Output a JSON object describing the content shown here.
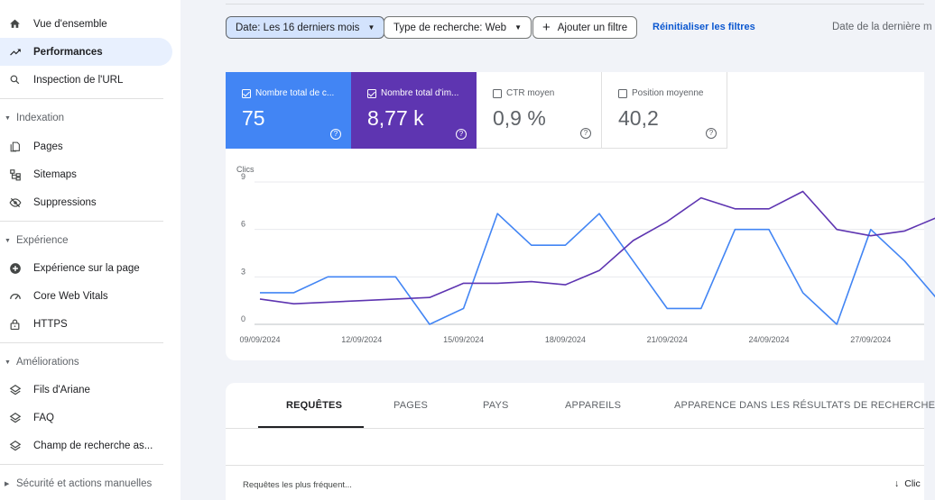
{
  "sidebar": {
    "top_items": [
      {
        "label": "Vue d'ensemble",
        "icon": "home-icon"
      },
      {
        "label": "Performances",
        "icon": "trending-up-icon",
        "active": true
      },
      {
        "label": "Inspection de l'URL",
        "icon": "search-icon"
      }
    ],
    "sections": [
      {
        "title": "Indexation",
        "items": [
          {
            "label": "Pages",
            "icon": "pages-icon"
          },
          {
            "label": "Sitemaps",
            "icon": "sitemap-icon"
          },
          {
            "label": "Suppressions",
            "icon": "eye-off-icon"
          }
        ]
      },
      {
        "title": "Expérience",
        "items": [
          {
            "label": "Expérience sur la page",
            "icon": "plus-circle-icon"
          },
          {
            "label": "Core Web Vitals",
            "icon": "gauge-icon"
          },
          {
            "label": "HTTPS",
            "icon": "lock-icon"
          }
        ]
      },
      {
        "title": "Améliorations",
        "items": [
          {
            "label": "Fils d'Ariane",
            "icon": "layers-icon"
          },
          {
            "label": "FAQ",
            "icon": "layers-icon"
          },
          {
            "label": "Champ de recherche as...",
            "icon": "layers-icon"
          }
        ]
      }
    ],
    "collapsed_section": "Sécurité et actions manuelles"
  },
  "filters": {
    "date": "Date: Les 16 derniers mois",
    "search_type": "Type de recherche: Web",
    "add_filter": "Ajouter un filtre",
    "reset": "Réinitialiser les filtres",
    "last_update": "Date de la dernière m"
  },
  "metrics": [
    {
      "label": "Nombre total de c...",
      "value": "75",
      "checked": true
    },
    {
      "label": "Nombre total d'im...",
      "value": "8,77 k",
      "checked": true
    },
    {
      "label": "CTR moyen",
      "value": "0,9 %",
      "checked": false
    },
    {
      "label": "Position moyenne",
      "value": "40,2",
      "checked": false
    }
  ],
  "colors": {
    "clicks": "#4285f4",
    "impressions": "#5e35b1",
    "accent": "#0b57d0"
  },
  "chart_data": {
    "type": "line",
    "ylabel": "Clics",
    "ylim": [
      0,
      9
    ],
    "yticks": [
      0,
      3,
      6,
      9
    ],
    "xlim": [
      0,
      20.5
    ],
    "x_tick_labels": [
      "09/09/2024",
      "12/09/2024",
      "15/09/2024",
      "18/09/2024",
      "21/09/2024",
      "24/09/2024",
      "27/09/2024"
    ],
    "x_tick_index": [
      0,
      3,
      6,
      9,
      12,
      15,
      18
    ],
    "series": [
      {
        "metric": "clicks",
        "values": [
          2,
          2,
          3,
          3,
          3,
          0,
          1,
          7,
          5,
          5,
          7,
          4,
          1,
          1,
          6,
          6,
          2,
          0,
          6,
          4,
          1.5
        ]
      },
      {
        "metric": "impressions",
        "values": [
          1.6,
          1.3,
          1.4,
          1.5,
          1.6,
          1.7,
          2.6,
          2.6,
          2.7,
          2.5,
          3.4,
          5.3,
          6.5,
          8.0,
          7.3,
          7.3,
          8.4,
          6.0,
          5.6,
          5.9,
          6.8
        ]
      }
    ],
    "grid": true
  },
  "tabs": [
    "REQUÊTES",
    "PAGES",
    "PAYS",
    "APPAREILS",
    "APPARENCE DANS LES RÉSULTATS DE RECHERCHE"
  ],
  "table": {
    "col1": "Requêtes les plus fréquent...",
    "sort_col": "Clic"
  }
}
